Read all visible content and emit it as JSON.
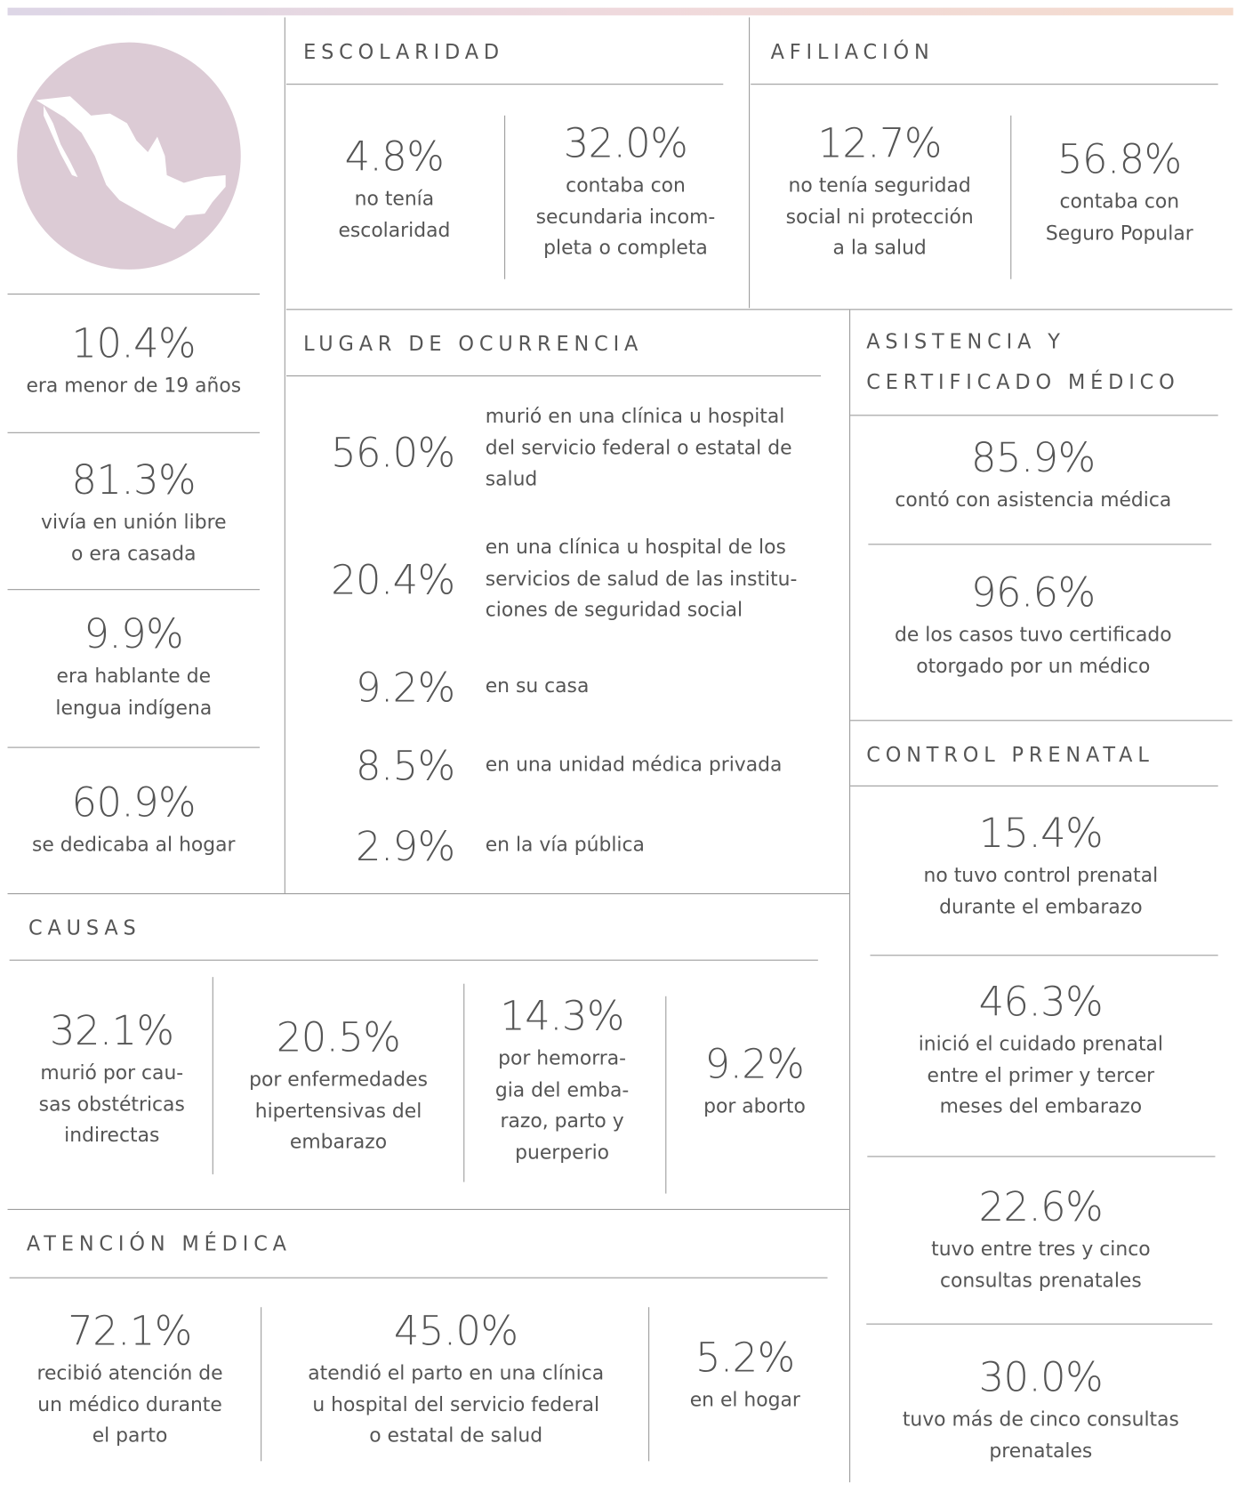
{
  "perfil": {
    "items": [
      {
        "value": "10.4%",
        "lines": [
          "era menor de 19 años"
        ]
      },
      {
        "value": "81.3%",
        "lines": [
          "vivía en unión libre",
          "o era casada"
        ]
      },
      {
        "value": "9.9%",
        "lines": [
          "era hablante de",
          "lengua indígena"
        ]
      },
      {
        "value": "60.9%",
        "lines": [
          "se dedicaba al hogar"
        ]
      }
    ]
  },
  "escolaridad": {
    "title": "ESCOLARIDAD",
    "items": [
      {
        "value": "4.8%",
        "lines": [
          "no tenía",
          "escolaridad"
        ]
      },
      {
        "value": "32.0%",
        "lines": [
          "contaba con",
          "secundaria incom-",
          "pleta o completa"
        ]
      }
    ]
  },
  "afiliacion": {
    "title": "AFILIACIÓN",
    "items": [
      {
        "value": "12.7%",
        "lines": [
          "no tenía seguridad",
          "social ni protección",
          "a la salud"
        ]
      },
      {
        "value": "56.8%",
        "lines": [
          "contaba con",
          "Seguro Popular"
        ]
      }
    ]
  },
  "lugar": {
    "title": "LUGAR DE OCURRENCIA",
    "items": [
      {
        "value": "56.0%",
        "lines": [
          "murió en una clínica u hospital",
          "del servicio federal o estatal de",
          "salud"
        ]
      },
      {
        "value": "20.4%",
        "lines": [
          "en una clínica u hospital de los",
          "servicios de salud de las institu-",
          "ciones de seguridad social"
        ]
      },
      {
        "value": "9.2%",
        "lines": [
          "en su casa"
        ]
      },
      {
        "value": "8.5%",
        "lines": [
          "en una unidad médica privada"
        ]
      },
      {
        "value": "2.9%",
        "lines": [
          "en la vía pública"
        ]
      }
    ]
  },
  "asistencia": {
    "title": [
      "ASISTENCIA Y",
      "CERTIFICADO MÉDICO"
    ],
    "items": [
      {
        "value": "85.9%",
        "lines": [
          "contó con asistencia médica"
        ]
      },
      {
        "value": "96.6%",
        "lines": [
          "de los casos tuvo certificado",
          "otorgado por un médico"
        ]
      }
    ]
  },
  "control": {
    "title": "CONTROL PRENATAL",
    "items": [
      {
        "value": "15.4%",
        "lines": [
          "no tuvo control prenatal",
          "durante el embarazo"
        ]
      },
      {
        "value": "46.3%",
        "lines": [
          "inició el cuidado prenatal",
          "entre el primer y tercer",
          "meses del embarazo"
        ]
      },
      {
        "value": "22.6%",
        "lines": [
          "tuvo entre tres y cinco",
          "consultas prenatales"
        ]
      },
      {
        "value": "30.0%",
        "lines": [
          "tuvo más de cinco consultas",
          "prenatales"
        ]
      }
    ]
  },
  "causas": {
    "title": "CAUSAS",
    "items": [
      {
        "value": "32.1%",
        "lines": [
          "murió por cau-",
          "sas obstétricas",
          "indirectas"
        ]
      },
      {
        "value": "20.5%",
        "lines": [
          "por enfermedades",
          "hipertensivas del",
          "embarazo"
        ]
      },
      {
        "value": "14.3%",
        "lines": [
          "por hemorra-",
          "gia del emba-",
          "razo, parto y",
          "puerperio"
        ]
      },
      {
        "value": "9.2%",
        "lines": [
          "por aborto"
        ]
      }
    ]
  },
  "atencion": {
    "title": "ATENCIÓN MÉDICA",
    "items": [
      {
        "value": "72.1%",
        "lines": [
          "recibió atención de",
          "un médico durante",
          "el parto"
        ]
      },
      {
        "value": "45.0%",
        "lines": [
          "atendió el parto en una clínica",
          "u hospital del servicio federal",
          "o estatal de salud"
        ]
      },
      {
        "value": "5.2%",
        "lines": [
          "en el hogar"
        ]
      }
    ]
  }
}
